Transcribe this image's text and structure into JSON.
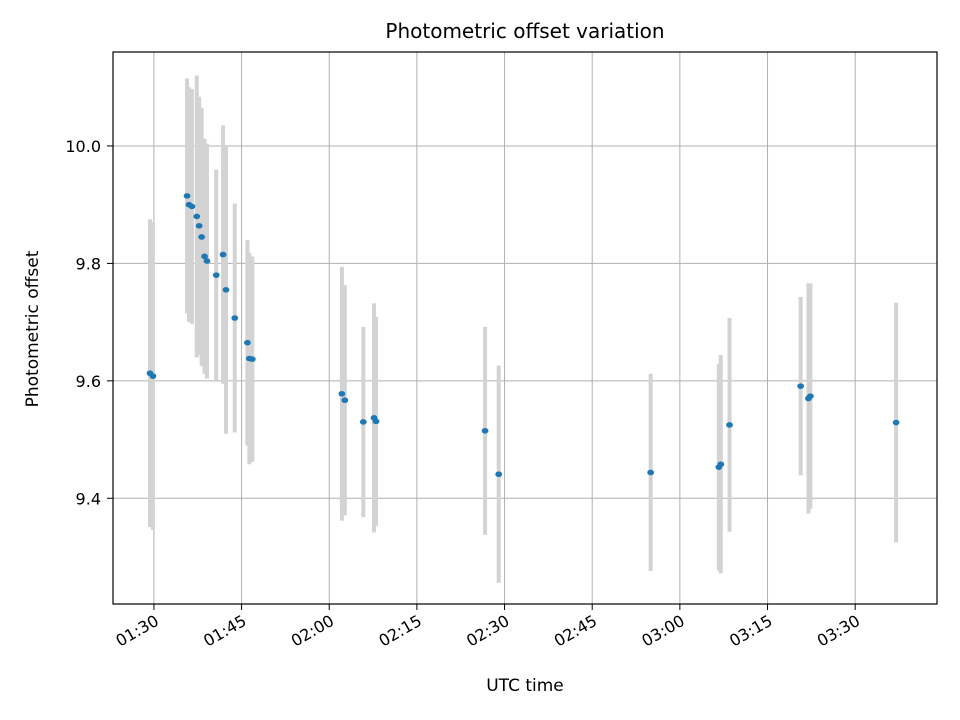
{
  "chart_data": {
    "type": "scatter",
    "title": "Photometric offset variation",
    "xlabel": "UTC time",
    "ylabel": "Photometric offset",
    "x_tick_labels": [
      "01:30",
      "01:45",
      "02:00",
      "02:15",
      "02:30",
      "02:45",
      "03:00",
      "03:15",
      "03:30"
    ],
    "x_ticks": [
      "01:30",
      "01:45",
      "02:00",
      "02:15",
      "02:30",
      "02:45",
      "03:00",
      "03:15",
      "03:30"
    ],
    "y_ticks": [
      9.4,
      9.6,
      9.8,
      10.0
    ],
    "y_tick_labels": [
      "9.4",
      "9.6",
      "9.8",
      "10.0"
    ],
    "xlim": [
      "01:23",
      "03:44"
    ],
    "ylim": [
      9.22,
      10.16
    ],
    "grid": true,
    "marker_color": "#1f77b4",
    "errorbar_color": "#d3d3d3",
    "points": [
      {
        "x": "01:29:20",
        "y": 9.613,
        "yerr": 0.262
      },
      {
        "x": "01:29:50",
        "y": 9.608,
        "yerr": 0.262
      },
      {
        "x": "01:35:40",
        "y": 9.915,
        "yerr": 0.2
      },
      {
        "x": "01:36:00",
        "y": 9.9,
        "yerr": 0.2
      },
      {
        "x": "01:36:30",
        "y": 9.897,
        "yerr": 0.2
      },
      {
        "x": "01:37:20",
        "y": 9.88,
        "yerr": 0.24
      },
      {
        "x": "01:37:45",
        "y": 9.864,
        "yerr": 0.22
      },
      {
        "x": "01:38:10",
        "y": 9.845,
        "yerr": 0.22
      },
      {
        "x": "01:38:40",
        "y": 9.812,
        "yerr": 0.2
      },
      {
        "x": "01:39:05",
        "y": 9.804,
        "yerr": 0.2
      },
      {
        "x": "01:40:40",
        "y": 9.78,
        "yerr": 0.18
      },
      {
        "x": "01:41:50",
        "y": 9.815,
        "yerr": 0.22
      },
      {
        "x": "01:42:20",
        "y": 9.755,
        "yerr": 0.245
      },
      {
        "x": "01:43:50",
        "y": 9.707,
        "yerr": 0.195
      },
      {
        "x": "01:46:00",
        "y": 9.665,
        "yerr": 0.175
      },
      {
        "x": "01:46:20",
        "y": 9.638,
        "yerr": 0.18
      },
      {
        "x": "01:46:50",
        "y": 9.637,
        "yerr": 0.175
      },
      {
        "x": "02:02:10",
        "y": 9.578,
        "yerr": 0.216
      },
      {
        "x": "02:02:40",
        "y": 9.567,
        "yerr": 0.196
      },
      {
        "x": "02:05:50",
        "y": 9.53,
        "yerr": 0.162
      },
      {
        "x": "02:07:40",
        "y": 9.537,
        "yerr": 0.195
      },
      {
        "x": "02:08:00",
        "y": 9.531,
        "yerr": 0.178
      },
      {
        "x": "02:26:40",
        "y": 9.515,
        "yerr": 0.177
      },
      {
        "x": "02:29:00",
        "y": 9.441,
        "yerr": 0.185
      },
      {
        "x": "02:55:00",
        "y": 9.444,
        "yerr": 0.168
      },
      {
        "x": "03:06:40",
        "y": 9.453,
        "yerr": 0.176
      },
      {
        "x": "03:07:00",
        "y": 9.458,
        "yerr": 0.186
      },
      {
        "x": "03:08:30",
        "y": 9.525,
        "yerr": 0.182
      },
      {
        "x": "03:20:40",
        "y": 9.591,
        "yerr": 0.152
      },
      {
        "x": "03:22:00",
        "y": 9.57,
        "yerr": 0.196
      },
      {
        "x": "03:22:20",
        "y": 9.574,
        "yerr": 0.192
      },
      {
        "x": "03:37:00",
        "y": 9.529,
        "yerr": 0.204
      }
    ]
  }
}
